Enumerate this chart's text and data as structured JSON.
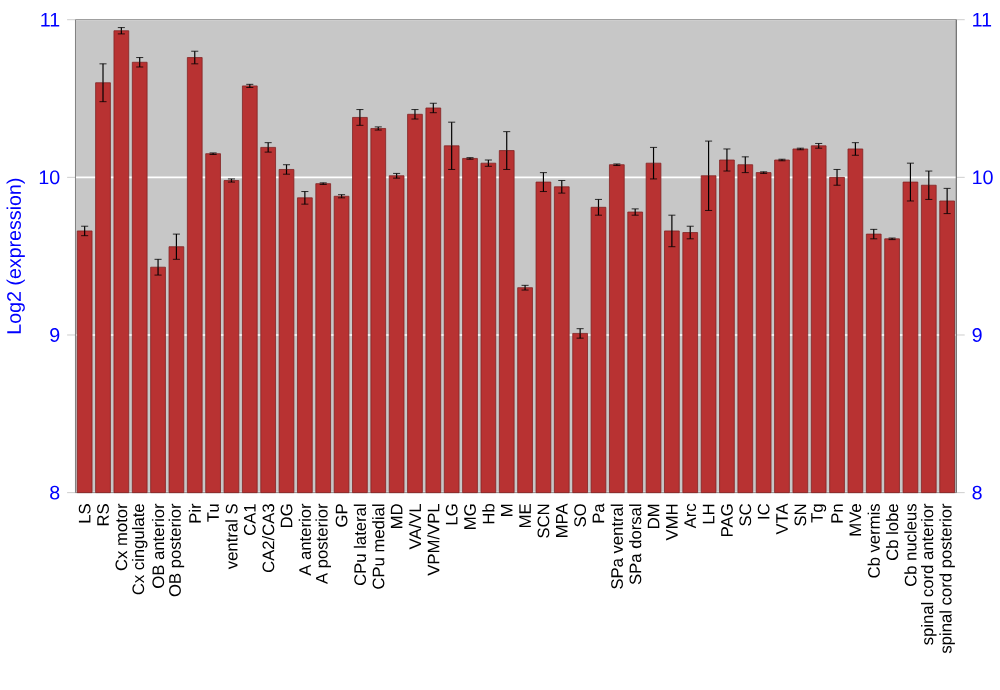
{
  "chart_data": {
    "type": "bar",
    "ylabel": "Log2 (expression)",
    "categories": [
      "LS",
      "RS",
      "Cx motor",
      "Cx cingulate",
      "OB anterior",
      "OB posterior",
      "Pir",
      "Tu",
      "ventral S",
      "CA1",
      "CA2/CA3",
      "DG",
      "A anterior",
      "A posterior",
      "GP",
      "CPu lateral",
      "CPu medial",
      "MD",
      "VA/VL",
      "VPM/VPL",
      "LG",
      "MG",
      "Hb",
      "M",
      "ME",
      "SCN",
      "MPA",
      "SO",
      "Pa",
      "SPa ventral",
      "SPa dorsal",
      "DM",
      "VMH",
      "Arc",
      "LH",
      "PAG",
      "SC",
      "IC",
      "VTA",
      "SN",
      "Tg",
      "Pn",
      "MVe",
      "Cb vermis",
      "Cb lobe",
      "Cb nucleus",
      "spinal cord anterior",
      "spinal cord posterior"
    ],
    "values": [
      9.66,
      10.6,
      10.93,
      10.73,
      9.43,
      9.56,
      10.76,
      10.15,
      9.98,
      10.58,
      10.19,
      10.05,
      9.87,
      9.96,
      9.88,
      10.38,
      10.31,
      10.01,
      10.4,
      10.44,
      10.2,
      10.12,
      10.09,
      10.17,
      9.3,
      9.97,
      9.94,
      9.01,
      9.81,
      10.08,
      9.78,
      10.09,
      9.66,
      9.65,
      10.01,
      10.11,
      10.08,
      10.03,
      10.11,
      10.18,
      10.2,
      10.0,
      10.18,
      9.64,
      9.61,
      9.97,
      9.95,
      9.85
    ],
    "errors": [
      0.03,
      0.12,
      0.02,
      0.03,
      0.05,
      0.08,
      0.04,
      0.005,
      0.01,
      0.01,
      0.03,
      0.03,
      0.04,
      0.005,
      0.01,
      0.05,
      0.01,
      0.015,
      0.03,
      0.03,
      0.15,
      0.005,
      0.02,
      0.12,
      0.015,
      0.06,
      0.04,
      0.03,
      0.05,
      0.005,
      0.02,
      0.1,
      0.1,
      0.04,
      0.22,
      0.07,
      0.05,
      0.005,
      0.005,
      0.005,
      0.015,
      0.05,
      0.04,
      0.03,
      0.005,
      0.12,
      0.09,
      0.08
    ],
    "color": "#b83232",
    "ylim": [
      8,
      11
    ],
    "yticks": [
      8,
      9,
      10,
      11
    ],
    "y2lim": [
      8,
      11
    ],
    "y2ticks": [
      8,
      9,
      10,
      11
    ],
    "grid": "y"
  }
}
